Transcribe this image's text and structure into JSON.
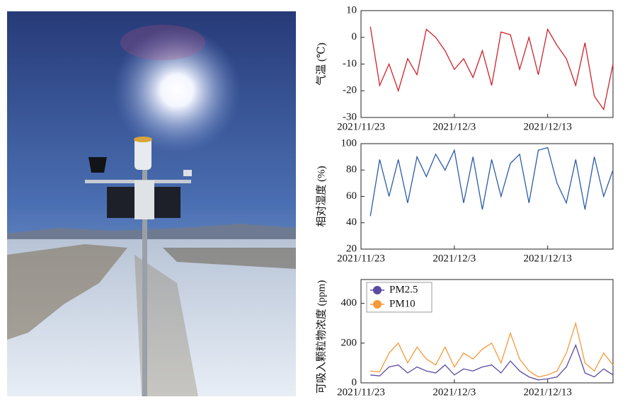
{
  "chart_data": [
    {
      "type": "line",
      "y_label": "气温 (℃)",
      "color": "#d0222a",
      "x": [
        "2021/11/24",
        "2021/11/25",
        "2021/11/26",
        "2021/11/27",
        "2021/11/28",
        "2021/11/29",
        "2021/11/30",
        "2021/12/1",
        "2021/12/2",
        "2021/12/3",
        "2021/12/4",
        "2021/12/5",
        "2021/12/6",
        "2021/12/7",
        "2021/12/8",
        "2021/12/9",
        "2021/12/10",
        "2021/12/11",
        "2021/12/12",
        "2021/12/13",
        "2021/12/14",
        "2021/12/15",
        "2021/12/16",
        "2021/12/17",
        "2021/12/18",
        "2021/12/19",
        "2021/12/20"
      ],
      "values": [
        4,
        -18,
        -10,
        -20,
        -8,
        -14,
        3,
        0,
        -5,
        -12,
        -8,
        -15,
        -5,
        -18,
        2,
        1,
        -12,
        0,
        -14,
        3,
        -3,
        -8,
        -18,
        -2,
        -22,
        -27,
        -10
      ],
      "xlim": [
        "2021/11/23",
        "2021/12/20"
      ],
      "xticks": [
        "2021/11/23",
        "2021/12/3",
        "2021/12/13"
      ],
      "ylim": [
        -30,
        10
      ],
      "yticks": [
        -30,
        -20,
        -10,
        0,
        10
      ]
    },
    {
      "type": "line",
      "y_label": "相对湿度 (%)",
      "color": "#2b5ca8",
      "x": [
        "2021/11/24",
        "2021/11/25",
        "2021/11/26",
        "2021/11/27",
        "2021/11/28",
        "2021/11/29",
        "2021/11/30",
        "2021/12/1",
        "2021/12/2",
        "2021/12/3",
        "2021/12/4",
        "2021/12/5",
        "2021/12/6",
        "2021/12/7",
        "2021/12/8",
        "2021/12/9",
        "2021/12/10",
        "2021/12/11",
        "2021/12/12",
        "2021/12/13",
        "2021/12/14",
        "2021/12/15",
        "2021/12/16",
        "2021/12/17",
        "2021/12/18",
        "2021/12/19",
        "2021/12/20"
      ],
      "values": [
        45,
        88,
        60,
        88,
        55,
        90,
        75,
        92,
        80,
        95,
        55,
        90,
        50,
        88,
        60,
        85,
        92,
        55,
        95,
        97,
        70,
        55,
        88,
        50,
        90,
        60,
        80
      ],
      "xlim": [
        "2021/11/23",
        "2021/12/20"
      ],
      "xticks": [
        "2021/11/23",
        "2021/12/3",
        "2021/12/13"
      ],
      "ylim": [
        20,
        100
      ],
      "yticks": [
        20,
        40,
        60,
        80,
        100
      ]
    },
    {
      "type": "line",
      "y_label": "可吸入颗粒物浓度 (ppm)",
      "legend": "upper left",
      "x": [
        "2021/11/24",
        "2021/11/25",
        "2021/11/26",
        "2021/11/27",
        "2021/11/28",
        "2021/11/29",
        "2021/11/30",
        "2021/12/1",
        "2021/12/2",
        "2021/12/3",
        "2021/12/4",
        "2021/12/5",
        "2021/12/6",
        "2021/12/7",
        "2021/12/8",
        "2021/12/9",
        "2021/12/10",
        "2021/12/11",
        "2021/12/12",
        "2021/12/13",
        "2021/12/14",
        "2021/12/15",
        "2021/12/16",
        "2021/12/17",
        "2021/12/18",
        "2021/12/19",
        "2021/12/20"
      ],
      "series": [
        {
          "name": "PM2.5",
          "color": "#5b4ba3",
          "values": [
            40,
            35,
            80,
            90,
            50,
            80,
            60,
            50,
            90,
            40,
            70,
            60,
            80,
            90,
            50,
            110,
            60,
            30,
            15,
            20,
            30,
            80,
            190,
            50,
            30,
            70,
            40
          ]
        },
        {
          "name": "PM10",
          "color": "#f39a3a",
          "values": [
            60,
            55,
            150,
            200,
            100,
            180,
            120,
            90,
            180,
            80,
            150,
            120,
            170,
            200,
            100,
            250,
            120,
            60,
            30,
            40,
            60,
            150,
            300,
            100,
            60,
            150,
            90
          ]
        }
      ],
      "xlim": [
        "2021/11/23",
        "2021/12/20"
      ],
      "xticks": [
        "2021/11/23",
        "2021/12/3",
        "2021/12/13"
      ],
      "ylim": [
        0,
        520
      ],
      "yticks": [
        0,
        200,
        400
      ]
    }
  ]
}
